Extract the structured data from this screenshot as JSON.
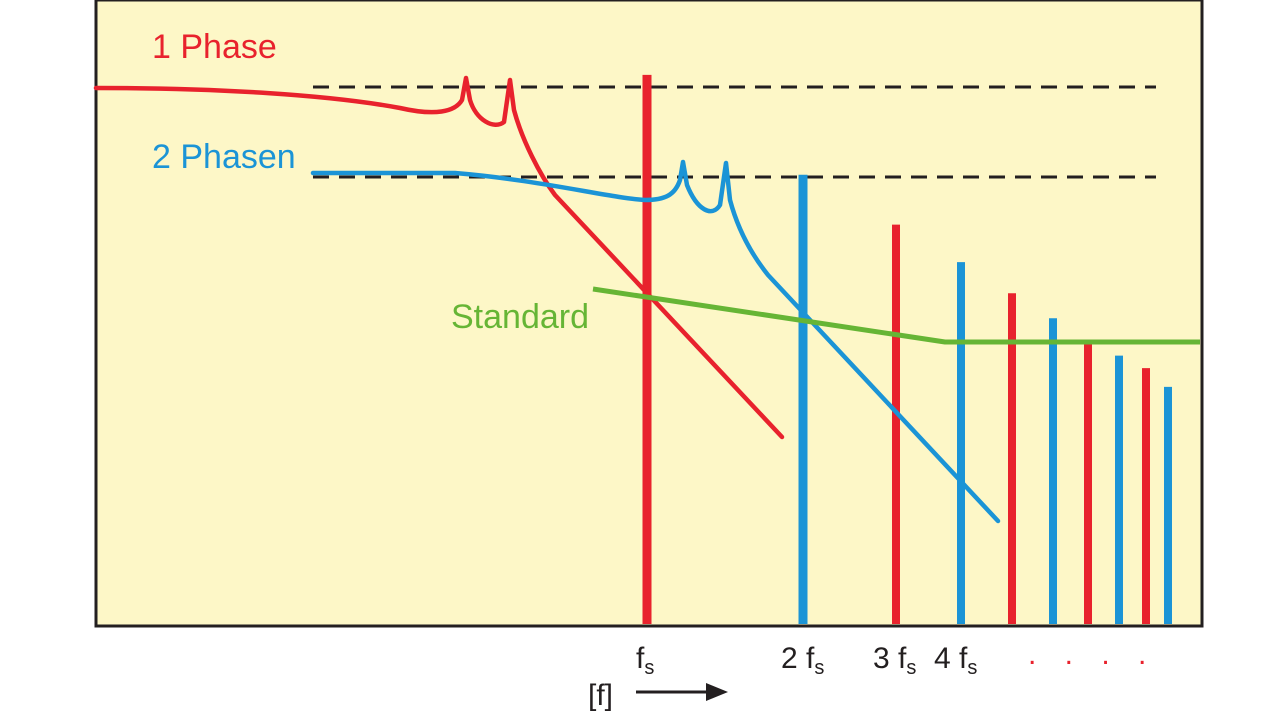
{
  "colors": {
    "background": "#fdf7c7",
    "frame": "#231f20",
    "phase1": "#e8222d",
    "phase2": "#1b94d6",
    "standard": "#66b535",
    "dashed": "#231f20"
  },
  "labels": {
    "phase1": "1 Phase",
    "phase2": "2 Phasen",
    "standard": "Standard"
  },
  "axis": {
    "unit": "[f]",
    "ticks": [
      {
        "pre": "",
        "base": "f",
        "sub": "s"
      },
      {
        "pre": "2 ",
        "base": "f",
        "sub": "s"
      },
      {
        "pre": "3 ",
        "base": "f",
        "sub": "s"
      },
      {
        "pre": "4 ",
        "base": "f",
        "sub": "s"
      }
    ],
    "continuation": ". . . ."
  },
  "harmonics": [
    {
      "order": 1,
      "series": "phase1",
      "level": 0.88
    },
    {
      "order": 2,
      "series": "phase2",
      "level": 0.72
    },
    {
      "order": 3,
      "series": "phase1",
      "level": 0.64
    },
    {
      "order": 4,
      "series": "phase2",
      "level": 0.58
    },
    {
      "order": 5,
      "series": "phase1",
      "level": 0.53
    },
    {
      "order": 6,
      "series": "phase2",
      "level": 0.49
    },
    {
      "order": 7,
      "series": "phase1",
      "level": 0.45
    },
    {
      "order": 8,
      "series": "phase2",
      "level": 0.43
    },
    {
      "order": 9,
      "series": "phase1",
      "level": 0.41
    },
    {
      "order": 10,
      "series": "phase2",
      "level": 0.38
    }
  ]
}
